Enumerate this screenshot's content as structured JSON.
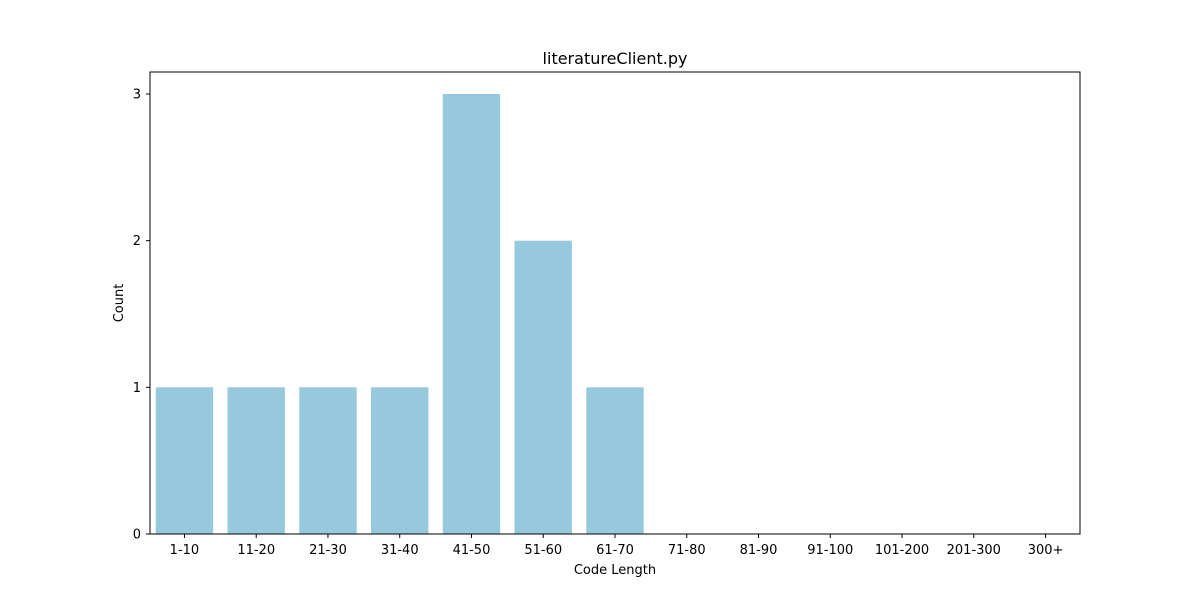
{
  "chart_data": {
    "type": "bar",
    "title": "literatureClient.py",
    "xlabel": "Code Length",
    "ylabel": "Count",
    "categories": [
      "1-10",
      "11-20",
      "21-30",
      "31-40",
      "41-50",
      "51-60",
      "61-70",
      "71-80",
      "81-90",
      "91-100",
      "101-200",
      "201-300",
      "300+"
    ],
    "values": [
      1,
      1,
      1,
      1,
      3,
      2,
      1,
      0,
      0,
      0,
      0,
      0,
      0
    ],
    "yticks": [
      0,
      1,
      2,
      3
    ],
    "ylim": [
      0,
      3.15
    ],
    "grid": false,
    "bar_color": "#96c9de"
  }
}
